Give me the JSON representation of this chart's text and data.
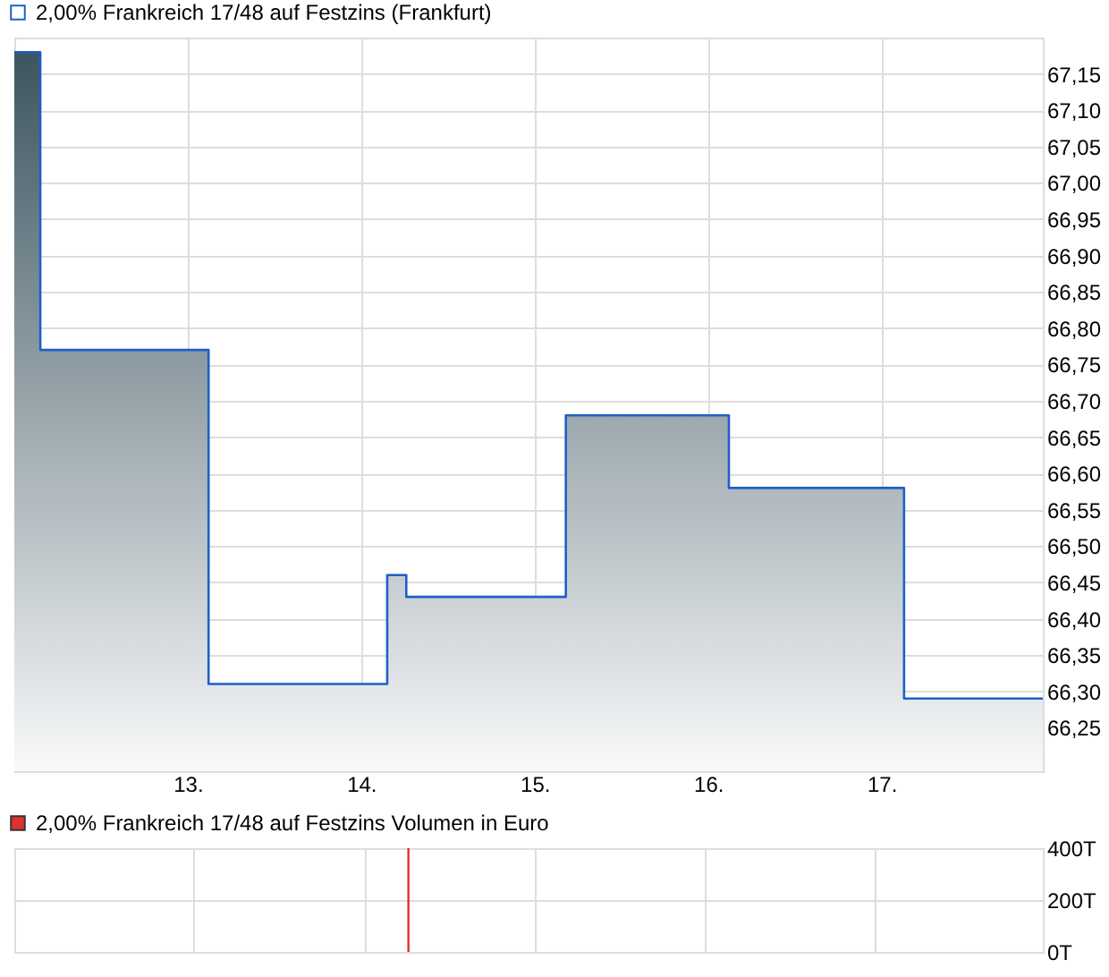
{
  "chart_data": [
    {
      "type": "area",
      "x": [
        12.0,
        12.15,
        12.15,
        13.12,
        13.12,
        14.15,
        14.15,
        14.26,
        14.26,
        15.18,
        15.18,
        16.12,
        16.12,
        17.13,
        17.13,
        17.93
      ],
      "series": [
        {
          "name": "2,00% Frankreich 17/48 auf Festzins (Frankfurt)",
          "color": "#1f5fc8",
          "values": [
            67.18,
            67.18,
            66.77,
            66.77,
            66.31,
            66.31,
            66.46,
            66.46,
            66.43,
            66.43,
            66.68,
            66.68,
            66.58,
            66.58,
            66.29,
            66.29
          ]
        }
      ],
      "xlim": [
        12.0,
        17.93
      ],
      "xticks": [
        {
          "value": 13,
          "label": "13."
        },
        {
          "value": 14,
          "label": "14."
        },
        {
          "value": 15,
          "label": "15."
        },
        {
          "value": 16,
          "label": "16."
        },
        {
          "value": 17,
          "label": "17."
        }
      ],
      "ylim": [
        66.19,
        67.2
      ],
      "yticks": [
        {
          "value": 66.25,
          "label": "66,25"
        },
        {
          "value": 66.3,
          "label": "66,30"
        },
        {
          "value": 66.35,
          "label": "66,35"
        },
        {
          "value": 66.4,
          "label": "66,40"
        },
        {
          "value": 66.45,
          "label": "66,45"
        },
        {
          "value": 66.5,
          "label": "66,50"
        },
        {
          "value": 66.55,
          "label": "66,55"
        },
        {
          "value": 66.6,
          "label": "66,60"
        },
        {
          "value": 66.65,
          "label": "66,65"
        },
        {
          "value": 66.7,
          "label": "66,70"
        },
        {
          "value": 66.75,
          "label": "66,75"
        },
        {
          "value": 66.8,
          "label": "66,80"
        },
        {
          "value": 66.85,
          "label": "66,85"
        },
        {
          "value": 66.9,
          "label": "66,90"
        },
        {
          "value": 66.95,
          "label": "66,95"
        },
        {
          "value": 67.0,
          "label": "67,00"
        },
        {
          "value": 67.05,
          "label": "67,05"
        },
        {
          "value": 67.1,
          "label": "67,10"
        },
        {
          "value": 67.15,
          "label": "67,15"
        }
      ],
      "grid": true,
      "legend": "top left"
    },
    {
      "type": "bar",
      "x": [
        14.26
      ],
      "series": [
        {
          "name": "2,00% Frankreich 17/48 auf Festzins Volumen in Euro",
          "color": "#e03030",
          "values": [
            400
          ]
        }
      ],
      "xlim": [
        12.0,
        17.93
      ],
      "xticks": [
        13,
        14,
        15,
        16,
        17
      ],
      "ylim": [
        0,
        400
      ],
      "yticks": [
        {
          "value": 0,
          "label": "0T"
        },
        {
          "value": 200,
          "label": "200T"
        },
        {
          "value": 400,
          "label": "400T"
        }
      ],
      "tick_labels": "y",
      "grid": true,
      "legend": "top left"
    }
  ]
}
